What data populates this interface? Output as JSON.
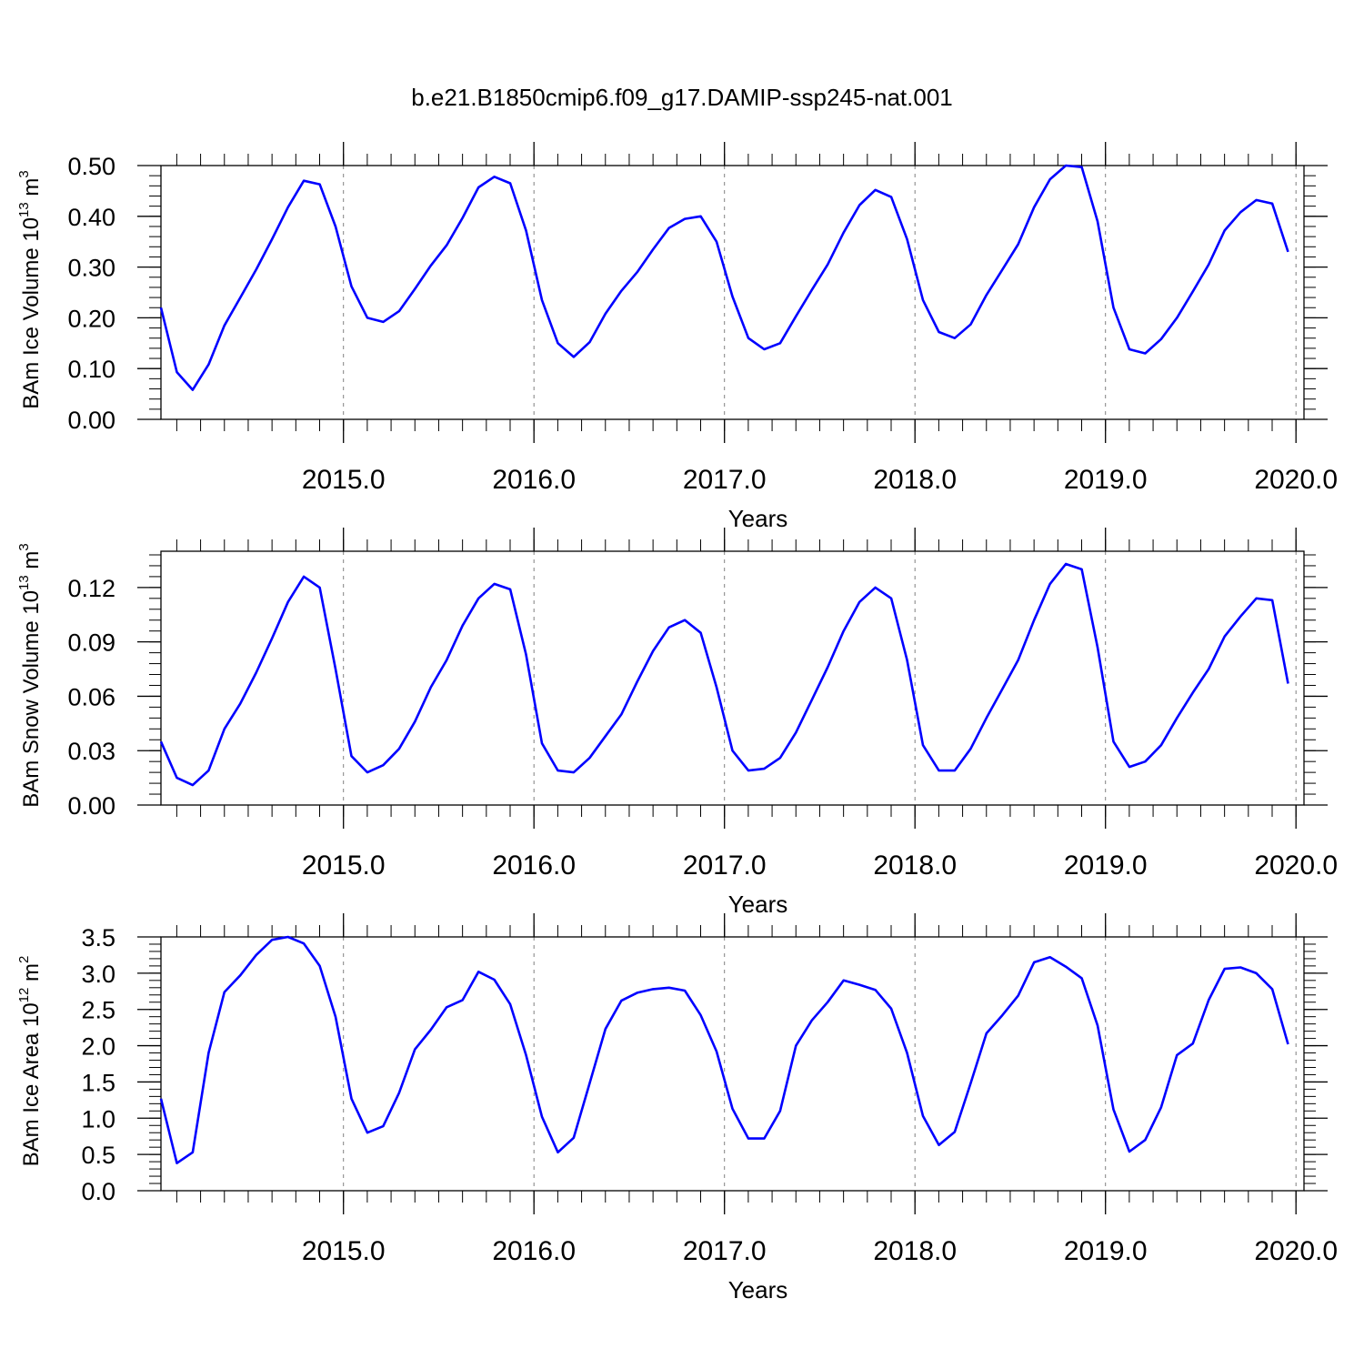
{
  "title": "b.e21.B1850cmip6.f09_g17.DAMIP-ssp245-nat.001",
  "colors": {
    "line": "#0000ff",
    "axis": "#000000",
    "grid": "#808080"
  },
  "chart_data": [
    {
      "type": "line",
      "ylabel_main": "BAm Ice Volume 10",
      "ylabel_exp": "13",
      "ylabel_tail": " m",
      "ylabel_unit_exp": "3",
      "xlabel": "Years",
      "xlim": [
        2014.042,
        2020.042
      ],
      "ylim": [
        0,
        0.5
      ],
      "xticks": [
        2015,
        2016,
        2017,
        2018,
        2019,
        2020
      ],
      "xtick_labels": [
        "2015.0",
        "2016.0",
        "2017.0",
        "2018.0",
        "2019.0",
        "2020.0"
      ],
      "yticks": [
        0,
        0.1,
        0.2,
        0.3,
        0.4,
        0.5
      ],
      "ytick_labels": [
        "0.00",
        "0.10",
        "0.20",
        "0.30",
        "0.40",
        "0.50"
      ],
      "grid": "dashed vertical lines at year boundaries",
      "series": [
        {
          "x_start": 2014.042,
          "x_step": 0.0833333,
          "values": [
            0.22,
            0.093,
            0.058,
            0.108,
            0.185,
            0.24,
            0.295,
            0.355,
            0.418,
            0.47,
            0.463,
            0.38,
            0.262,
            0.2,
            0.192,
            0.213,
            0.257,
            0.303,
            0.343,
            0.397,
            0.457,
            0.478,
            0.465,
            0.372,
            0.235,
            0.15,
            0.123,
            0.152,
            0.208,
            0.253,
            0.29,
            0.335,
            0.377,
            0.395,
            0.4,
            0.35,
            0.242,
            0.16,
            0.138,
            0.15,
            0.203,
            0.255,
            0.305,
            0.368,
            0.422,
            0.452,
            0.438,
            0.355,
            0.235,
            0.172,
            0.16,
            0.187,
            0.245,
            0.295,
            0.345,
            0.418,
            0.473,
            0.5,
            0.497,
            0.39,
            0.22,
            0.138,
            0.13,
            0.158,
            0.2,
            0.252,
            0.305,
            0.372,
            0.408,
            0.432,
            0.425,
            0.33
          ]
        }
      ]
    },
    {
      "type": "line",
      "ylabel_main": "BAm Snow Volume 10",
      "ylabel_exp": "13",
      "ylabel_tail": " m",
      "ylabel_unit_exp": "3",
      "xlabel": "Years",
      "xlim": [
        2014.042,
        2020.042
      ],
      "ylim": [
        0,
        0.14
      ],
      "xticks": [
        2015,
        2016,
        2017,
        2018,
        2019,
        2020
      ],
      "xtick_labels": [
        "2015.0",
        "2016.0",
        "2017.0",
        "2018.0",
        "2019.0",
        "2020.0"
      ],
      "yticks": [
        0,
        0.03,
        0.06,
        0.09,
        0.12
      ],
      "ytick_labels": [
        "0.00",
        "0.03",
        "0.06",
        "0.09",
        "0.12"
      ],
      "grid": "dashed vertical lines at year boundaries",
      "series": [
        {
          "x_start": 2014.042,
          "x_step": 0.0833333,
          "values": [
            0.035,
            0.015,
            0.011,
            0.019,
            0.042,
            0.056,
            0.073,
            0.092,
            0.112,
            0.126,
            0.12,
            0.075,
            0.027,
            0.018,
            0.022,
            0.031,
            0.046,
            0.065,
            0.08,
            0.099,
            0.114,
            0.122,
            0.119,
            0.083,
            0.034,
            0.019,
            0.018,
            0.026,
            0.038,
            0.05,
            0.068,
            0.085,
            0.098,
            0.102,
            0.095,
            0.065,
            0.03,
            0.019,
            0.02,
            0.026,
            0.04,
            0.058,
            0.076,
            0.096,
            0.112,
            0.12,
            0.114,
            0.08,
            0.033,
            0.019,
            0.019,
            0.031,
            0.048,
            0.064,
            0.08,
            0.102,
            0.122,
            0.133,
            0.13,
            0.087,
            0.035,
            0.021,
            0.024,
            0.033,
            0.048,
            0.062,
            0.075,
            0.093,
            0.104,
            0.114,
            0.113,
            0.067
          ]
        }
      ]
    },
    {
      "type": "line",
      "ylabel_main": "BAm Ice Area 10",
      "ylabel_exp": "12",
      "ylabel_tail": " m",
      "ylabel_unit_exp": "2",
      "xlabel": "Years",
      "xlim": [
        2014.042,
        2020.042
      ],
      "ylim": [
        0,
        3.5
      ],
      "xticks": [
        2015,
        2016,
        2017,
        2018,
        2019,
        2020
      ],
      "xtick_labels": [
        "2015.0",
        "2016.0",
        "2017.0",
        "2018.0",
        "2019.0",
        "2020.0"
      ],
      "yticks": [
        0,
        0.5,
        1.0,
        1.5,
        2.0,
        2.5,
        3.0,
        3.5
      ],
      "ytick_labels": [
        "0.0",
        "0.5",
        "1.0",
        "1.5",
        "2.0",
        "2.5",
        "3.0",
        "3.5"
      ],
      "grid": "dashed vertical lines at year boundaries",
      "series": [
        {
          "x_start": 2014.042,
          "x_step": 0.0833333,
          "values": [
            1.27,
            0.38,
            0.53,
            1.9,
            2.74,
            2.97,
            3.25,
            3.46,
            3.5,
            3.41,
            3.1,
            2.4,
            1.27,
            0.8,
            0.89,
            1.35,
            1.95,
            2.22,
            2.53,
            2.63,
            3.02,
            2.91,
            2.57,
            1.87,
            1.02,
            0.53,
            0.73,
            1.48,
            2.23,
            2.62,
            2.73,
            2.78,
            2.8,
            2.76,
            2.42,
            1.92,
            1.13,
            0.72,
            0.72,
            1.1,
            2.0,
            2.35,
            2.6,
            2.9,
            2.84,
            2.77,
            2.51,
            1.9,
            1.03,
            0.63,
            0.81,
            1.48,
            2.17,
            2.42,
            2.69,
            3.15,
            3.22,
            3.09,
            2.93,
            2.28,
            1.12,
            0.54,
            0.7,
            1.15,
            1.87,
            2.03,
            2.63,
            3.06,
            3.08,
            3.0,
            2.78,
            2.02
          ]
        }
      ]
    }
  ]
}
